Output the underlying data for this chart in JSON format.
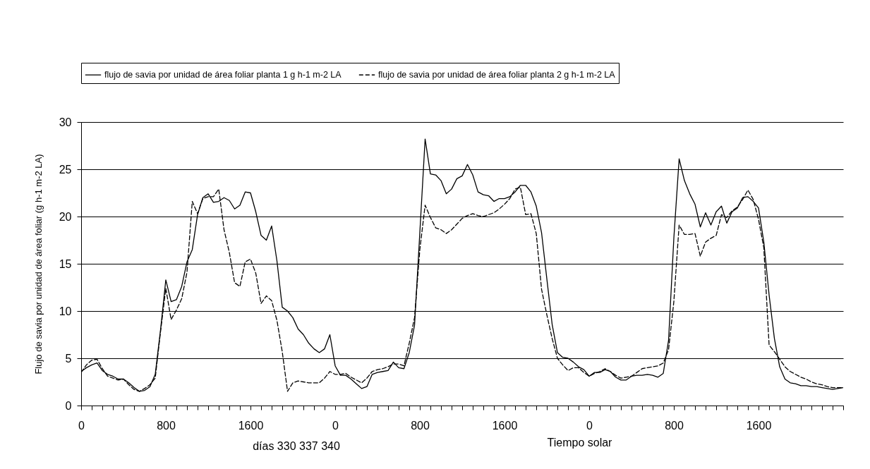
{
  "chart_data": {
    "type": "line",
    "xlabel": "Tiempo solar",
    "ylabel": "Flujo de savia por unidad de área foliar (g h-1 m-2 LA)",
    "annotations": [
      "días 330 337 340"
    ],
    "legend": "top",
    "grid": "y",
    "ylim": [
      0,
      30
    ],
    "yticks": [
      0,
      5,
      10,
      15,
      20,
      25,
      30
    ],
    "categories": [
      "0",
      null,
      null,
      null,
      null,
      null,
      null,
      null,
      null,
      null,
      null,
      null,
      null,
      null,
      null,
      null,
      "800",
      null,
      null,
      null,
      null,
      null,
      null,
      null,
      null,
      null,
      null,
      null,
      null,
      null,
      null,
      null,
      "1600",
      null,
      null,
      null,
      null,
      null,
      null,
      null,
      null,
      null,
      null,
      null,
      null,
      null,
      null,
      null,
      "0",
      null,
      null,
      null,
      null,
      null,
      null,
      null,
      null,
      null,
      null,
      null,
      null,
      null,
      null,
      null,
      "800",
      null,
      null,
      null,
      null,
      null,
      null,
      null,
      null,
      null,
      null,
      null,
      null,
      null,
      null,
      null,
      "1600",
      null,
      null,
      null,
      null,
      null,
      null,
      null,
      null,
      null,
      null,
      null,
      null,
      null,
      null,
      null,
      "0",
      null,
      null,
      null,
      null,
      null,
      null,
      null,
      null,
      null,
      null,
      null,
      null,
      null,
      null,
      null,
      "800",
      null,
      null,
      null,
      null,
      null,
      null,
      null,
      null,
      null,
      null,
      null,
      null,
      null,
      null,
      null,
      "1600",
      null,
      null,
      null,
      null,
      null,
      null,
      null,
      null,
      null,
      null,
      null,
      null,
      null,
      null,
      null,
      null
    ],
    "series": [
      {
        "name": "flujo de savia por unidad de área foliar planta 1 g h-1 m-2 LA",
        "color": "#000000",
        "line_style": "solid",
        "values": [
          3.6,
          4.0,
          4.3,
          4.5,
          3.7,
          3.3,
          3.1,
          2.8,
          2.8,
          2.4,
          1.9,
          1.5,
          1.6,
          2.0,
          3.3,
          8.0,
          13.3,
          11.0,
          11.2,
          12.6,
          15.2,
          16.5,
          20.2,
          22.0,
          22.4,
          21.5,
          21.6,
          22.0,
          21.7,
          20.8,
          21.2,
          22.6,
          22.5,
          20.5,
          18.0,
          17.5,
          19.0,
          15.3,
          10.4,
          10.0,
          9.3,
          8.1,
          7.5,
          6.6,
          6.0,
          5.6,
          6.0,
          7.5,
          4.2,
          3.2,
          3.2,
          2.8,
          2.3,
          1.8,
          2.0,
          3.3,
          3.5,
          3.6,
          3.7,
          4.6,
          4.0,
          3.9,
          5.6,
          8.5,
          18.3,
          28.2,
          24.5,
          24.4,
          23.8,
          22.4,
          22.9,
          24.0,
          24.3,
          25.5,
          24.4,
          22.6,
          22.3,
          22.2,
          21.6,
          21.9,
          21.9,
          22.1,
          22.6,
          23.3,
          23.3,
          22.6,
          21.1,
          18.3,
          13.4,
          8.6,
          5.6,
          5.1,
          5.0,
          4.6,
          4.1,
          3.8,
          3.1,
          3.5,
          3.5,
          3.8,
          3.6,
          3.0,
          2.7,
          2.7,
          3.1,
          3.2,
          3.2,
          3.3,
          3.2,
          3.0,
          3.4,
          6.9,
          17.7,
          26.1,
          23.8,
          22.4,
          21.3,
          18.9,
          20.4,
          19.1,
          20.5,
          21.1,
          19.3,
          20.5,
          20.9,
          22.0,
          22.1,
          21.6,
          20.9,
          17.3,
          11.7,
          7.1,
          4.1,
          2.8,
          2.4,
          2.3,
          2.1,
          2.1,
          2.0,
          2.0,
          1.9,
          1.8,
          1.7,
          1.8,
          1.9
        ]
      },
      {
        "name": "flujo de savia por unidad de área foliar planta 2 g h-1 m-2 LA",
        "color": "#000000",
        "line_style": "dashed",
        "values": [
          3.5,
          4.3,
          4.8,
          4.9,
          3.9,
          3.1,
          2.9,
          2.7,
          2.8,
          2.2,
          1.7,
          1.5,
          1.8,
          2.2,
          2.9,
          7.8,
          12.4,
          9.1,
          10.1,
          11.3,
          14.1,
          21.6,
          20.3,
          21.9,
          22.1,
          22.1,
          22.9,
          18.6,
          16.2,
          13.0,
          12.6,
          15.2,
          15.5,
          14.0,
          10.8,
          11.6,
          11.1,
          9.0,
          5.7,
          1.5,
          2.4,
          2.6,
          2.5,
          2.4,
          2.4,
          2.4,
          2.9,
          3.6,
          3.3,
          3.3,
          3.4,
          3.0,
          2.7,
          2.4,
          2.9,
          3.6,
          3.8,
          3.9,
          4.1,
          4.4,
          4.4,
          4.2,
          6.6,
          9.3,
          16.5,
          21.2,
          19.9,
          18.8,
          18.6,
          18.2,
          18.6,
          19.2,
          19.8,
          20.1,
          20.3,
          20.1,
          20.0,
          20.2,
          20.4,
          20.8,
          21.3,
          21.9,
          22.9,
          23.1,
          20.2,
          20.3,
          18.2,
          12.3,
          9.6,
          7.1,
          5.0,
          4.3,
          3.7,
          4.0,
          4.0,
          3.5,
          3.1,
          3.4,
          3.6,
          3.9,
          3.6,
          3.2,
          2.9,
          3.0,
          3.1,
          3.5,
          3.9,
          4.0,
          4.1,
          4.2,
          4.5,
          5.9,
          11.0,
          19.1,
          18.1,
          18.1,
          18.2,
          15.8,
          17.3,
          17.7,
          18.0,
          20.2,
          19.9,
          20.6,
          21.0,
          21.8,
          22.8,
          21.8,
          19.7,
          16.7,
          6.4,
          5.7,
          4.9,
          4.1,
          3.6,
          3.3,
          3.0,
          2.8,
          2.5,
          2.3,
          2.2,
          2.0,
          1.9,
          1.9,
          1.9
        ]
      }
    ]
  }
}
